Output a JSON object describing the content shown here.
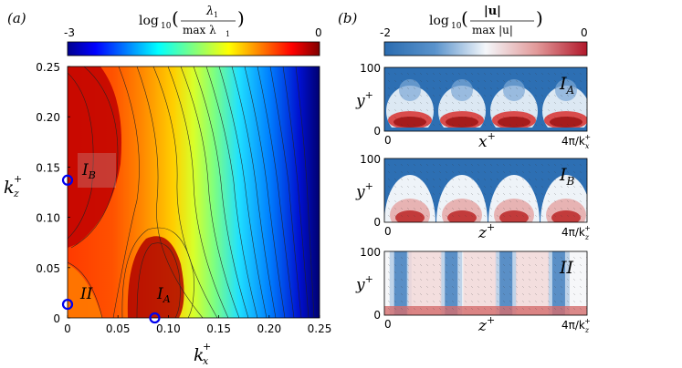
{
  "panel_a": {
    "label": "(a)",
    "colorbar": {
      "title_prefix": "log",
      "title_sub": "10",
      "title_num": "λ",
      "title_num_sub": "1",
      "title_den": "max λ",
      "title_den_sub": "1",
      "min_label": "-3",
      "max_label": "0",
      "colormap": "jet"
    },
    "points": [
      {
        "name": "I",
        "sub": "B",
        "kx": 0.0,
        "kz": 0.137
      },
      {
        "name": "I",
        "sub": "A",
        "kx": 0.0865,
        "kz": 0.0
      },
      {
        "name": "II",
        "sub": "",
        "kx": 0.0,
        "kz": 0.0135
      }
    ]
  },
  "panel_b": {
    "label": "(b)",
    "colorbar": {
      "title_prefix": "log",
      "title_sub": "10",
      "title_num": "|u|",
      "title_den": "max |u|",
      "min_label": "-2",
      "max_label": "0",
      "colormap": "blue-white-red"
    },
    "subplots": [
      {
        "label": "I",
        "label_sub": "A",
        "y_label": "y",
        "y_sup": "+",
        "x_label": "x",
        "x_sup": "+",
        "y_ticks": [
          "100",
          "0"
        ],
        "x_left": "0",
        "x_right": "4π/k",
        "x_right_sub": "x",
        "x_right_sup": "+"
      },
      {
        "label": "I",
        "label_sub": "B",
        "y_label": "y",
        "y_sup": "+",
        "x_label": "z",
        "x_sup": "+",
        "y_ticks": [
          "100",
          "0"
        ],
        "x_left": "0",
        "x_right": "4π/k",
        "x_right_sub": "z",
        "x_right_sup": "+"
      },
      {
        "label": "II",
        "label_sub": "",
        "y_label": "y",
        "y_sup": "+",
        "x_label": "z",
        "x_sup": "+",
        "y_ticks": [
          "100",
          "0"
        ],
        "x_left": "0",
        "x_right": "4π/k",
        "x_right_sub": "z",
        "x_right_sup": "+"
      }
    ]
  },
  "chart_data": [
    {
      "type": "heatmap",
      "title": "log10(λ1 / max λ1)",
      "xlabel": "k_x^+",
      "ylabel": "k_z^+",
      "xlim": [
        0,
        0.25
      ],
      "ylim": [
        0,
        0.25
      ],
      "x_ticks": [
        "0",
        "0.05",
        "0.10",
        "0.15",
        "0.20",
        "0.25"
      ],
      "y_ticks": [
        "0",
        "0.05",
        "0.10",
        "0.15",
        "0.20",
        "0.25"
      ],
      "color_range": [
        -3,
        0
      ],
      "contours": true,
      "description_points": [
        {
          "label": "I_B",
          "kx": 0.0,
          "kz": 0.137
        },
        {
          "label": "I_A",
          "kx": 0.0865,
          "kz": 0.0
        },
        {
          "label": "II",
          "kx": 0.0,
          "kz": 0.0135
        }
      ]
    },
    {
      "type": "heatmap",
      "title": "log10(|u| / max|u|)",
      "ylabel": "y^+",
      "color_range": [
        -2,
        0
      ],
      "panels": [
        "I_A",
        "I_B",
        "II"
      ]
    }
  ]
}
